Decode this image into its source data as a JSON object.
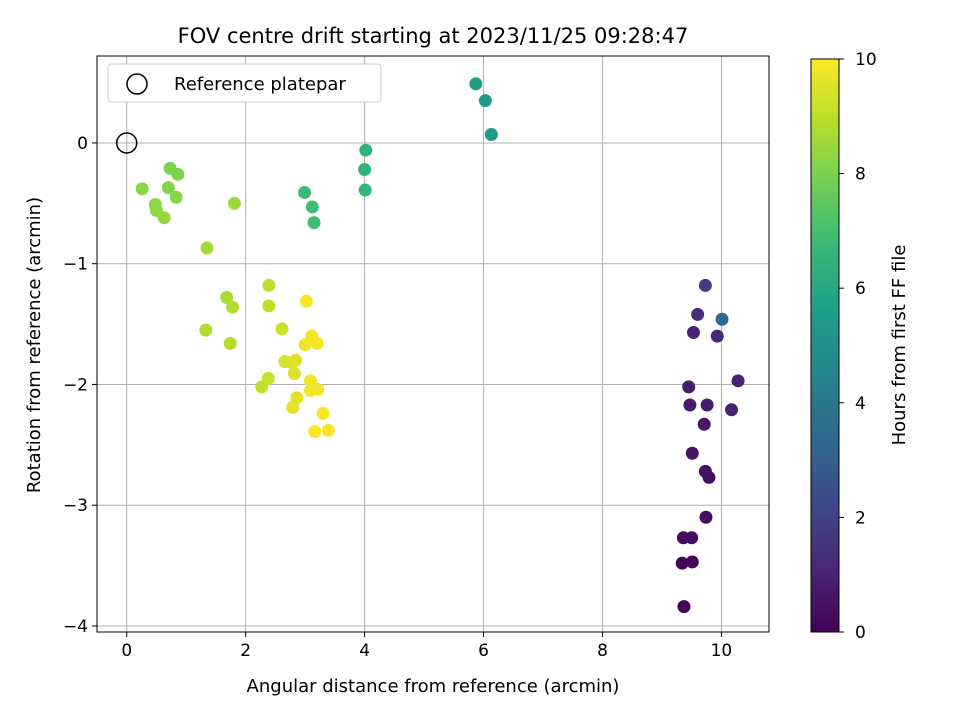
{
  "chart_data": {
    "type": "scatter",
    "title": "FOV centre drift starting at 2023/11/25 09:28:47",
    "xlabel": "Angular distance from reference (arcmin)",
    "ylabel": "Rotation from reference (arcmin)",
    "xlim": [
      -0.5,
      10.8
    ],
    "ylim": [
      -4.05,
      0.72
    ],
    "xticks": [
      0,
      2,
      4,
      6,
      8,
      10
    ],
    "yticks": [
      0,
      -1,
      -2,
      -3,
      -4
    ],
    "xtick_labels": [
      "0",
      "2",
      "4",
      "6",
      "8",
      "10"
    ],
    "ytick_labels": [
      "0",
      "−1",
      "−2",
      "−3",
      "−4"
    ],
    "grid": true,
    "legend": {
      "position": "top-left",
      "label": "Reference platepar"
    },
    "reference_point": {
      "x": 0,
      "y": 0
    },
    "colorbar": {
      "label": "Hours from first FF file",
      "range": [
        0,
        10
      ],
      "ticks": [
        0,
        2,
        4,
        6,
        8,
        10
      ],
      "tick_labels": [
        "0",
        "2",
        "4",
        "6",
        "8",
        "10"
      ],
      "colormap": [
        "#440154",
        "#482878",
        "#3e4989",
        "#31688e",
        "#26828e",
        "#1f9e89",
        "#35b779",
        "#6ece58",
        "#b5de2b",
        "#fde725"
      ]
    },
    "points": [
      {
        "x": 9.37,
        "y": -3.84,
        "h": 0.1
      },
      {
        "x": 9.34,
        "y": -3.48,
        "h": 0.15
      },
      {
        "x": 9.51,
        "y": -3.47,
        "h": 0.2
      },
      {
        "x": 9.36,
        "y": -3.27,
        "h": 0.25
      },
      {
        "x": 9.5,
        "y": -3.27,
        "h": 0.3
      },
      {
        "x": 9.74,
        "y": -3.1,
        "h": 0.35
      },
      {
        "x": 9.79,
        "y": -2.77,
        "h": 0.4
      },
      {
        "x": 9.73,
        "y": -2.72,
        "h": 0.45
      },
      {
        "x": 9.51,
        "y": -2.57,
        "h": 0.5
      },
      {
        "x": 9.71,
        "y": -2.33,
        "h": 0.6
      },
      {
        "x": 9.47,
        "y": -2.17,
        "h": 0.7
      },
      {
        "x": 9.76,
        "y": -2.17,
        "h": 0.75
      },
      {
        "x": 9.45,
        "y": -2.02,
        "h": 0.8
      },
      {
        "x": 10.17,
        "y": -2.21,
        "h": 0.9
      },
      {
        "x": 10.28,
        "y": -1.97,
        "h": 0.95
      },
      {
        "x": 9.53,
        "y": -1.57,
        "h": 1.0
      },
      {
        "x": 9.93,
        "y": -1.6,
        "h": 1.1
      },
      {
        "x": 9.6,
        "y": -1.42,
        "h": 1.2
      },
      {
        "x": 9.73,
        "y": -1.18,
        "h": 1.8
      },
      {
        "x": 10.01,
        "y": -1.46,
        "h": 3.4
      },
      {
        "x": 4.01,
        "y": -0.39,
        "h": 6.6
      },
      {
        "x": 4.0,
        "y": -0.22,
        "h": 6.5
      },
      {
        "x": 4.02,
        "y": -0.06,
        "h": 6.4
      },
      {
        "x": 5.87,
        "y": 0.49,
        "h": 5.5
      },
      {
        "x": 6.03,
        "y": 0.35,
        "h": 5.45
      },
      {
        "x": 6.13,
        "y": 0.07,
        "h": 5.4
      },
      {
        "x": 2.99,
        "y": -0.41,
        "h": 6.8
      },
      {
        "x": 3.12,
        "y": -0.53,
        "h": 6.9
      },
      {
        "x": 3.15,
        "y": -0.66,
        "h": 6.9
      },
      {
        "x": 0.73,
        "y": -0.21,
        "h": 8.0
      },
      {
        "x": 0.86,
        "y": -0.26,
        "h": 8.0
      },
      {
        "x": 0.7,
        "y": -0.37,
        "h": 8.1
      },
      {
        "x": 0.26,
        "y": -0.38,
        "h": 8.2
      },
      {
        "x": 0.83,
        "y": -0.45,
        "h": 8.2
      },
      {
        "x": 0.48,
        "y": -0.51,
        "h": 8.3
      },
      {
        "x": 0.5,
        "y": -0.56,
        "h": 8.3
      },
      {
        "x": 0.63,
        "y": -0.62,
        "h": 8.4
      },
      {
        "x": 1.81,
        "y": -0.5,
        "h": 8.5
      },
      {
        "x": 1.35,
        "y": -0.87,
        "h": 8.6
      },
      {
        "x": 1.68,
        "y": -1.28,
        "h": 8.7
      },
      {
        "x": 1.78,
        "y": -1.36,
        "h": 8.8
      },
      {
        "x": 1.33,
        "y": -1.55,
        "h": 8.8
      },
      {
        "x": 1.74,
        "y": -1.66,
        "h": 8.9
      },
      {
        "x": 2.39,
        "y": -1.18,
        "h": 9.0
      },
      {
        "x": 2.39,
        "y": -1.35,
        "h": 9.0
      },
      {
        "x": 2.61,
        "y": -1.54,
        "h": 9.2
      },
      {
        "x": 2.38,
        "y": -1.95,
        "h": 9.1
      },
      {
        "x": 2.27,
        "y": -2.02,
        "h": 9.1
      },
      {
        "x": 2.66,
        "y": -1.81,
        "h": 9.4
      },
      {
        "x": 2.78,
        "y": -1.82,
        "h": 9.4
      },
      {
        "x": 2.84,
        "y": -1.8,
        "h": 9.5
      },
      {
        "x": 2.82,
        "y": -1.91,
        "h": 9.5
      },
      {
        "x": 2.86,
        "y": -2.11,
        "h": 9.6
      },
      {
        "x": 2.79,
        "y": -2.19,
        "h": 9.6
      },
      {
        "x": 3.02,
        "y": -1.31,
        "h": 9.9
      },
      {
        "x": 3.0,
        "y": -1.67,
        "h": 9.8
      },
      {
        "x": 3.11,
        "y": -1.6,
        "h": 9.8
      },
      {
        "x": 3.2,
        "y": -1.66,
        "h": 9.9
      },
      {
        "x": 3.09,
        "y": -1.97,
        "h": 9.8
      },
      {
        "x": 3.09,
        "y": -2.05,
        "h": 9.8
      },
      {
        "x": 3.21,
        "y": -2.04,
        "h": 9.8
      },
      {
        "x": 3.3,
        "y": -2.24,
        "h": 9.9
      },
      {
        "x": 3.16,
        "y": -2.39,
        "h": 10.0
      },
      {
        "x": 3.39,
        "y": -2.38,
        "h": 10.0
      }
    ]
  }
}
